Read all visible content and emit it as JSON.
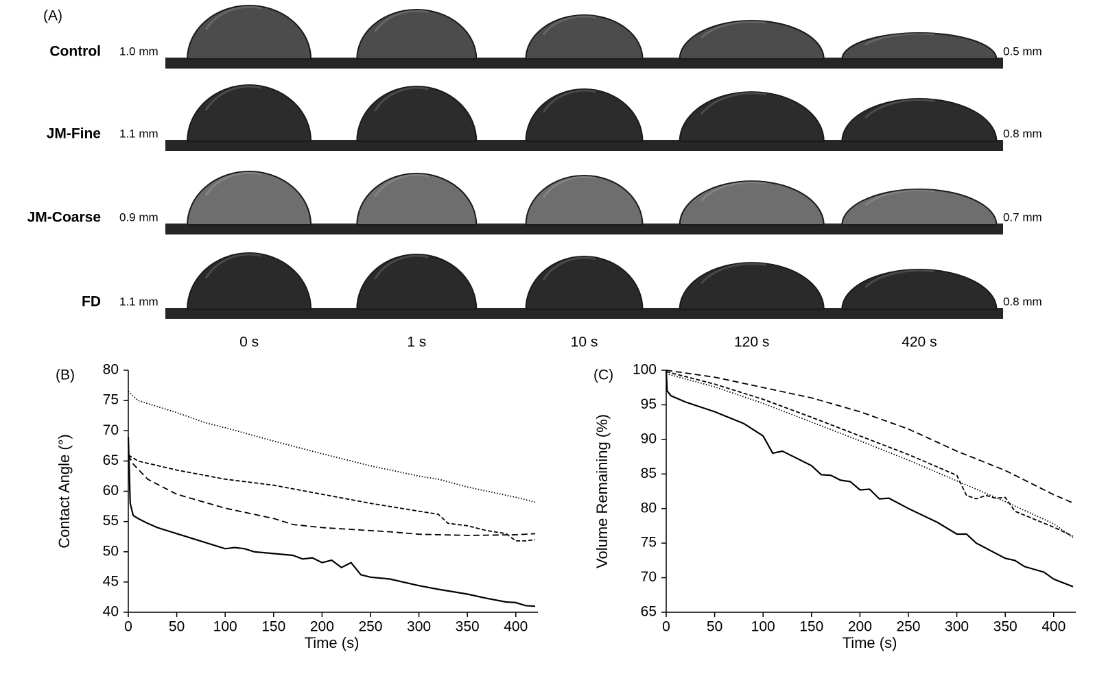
{
  "panel_a": {
    "label": "(A)",
    "rows": [
      {
        "name": "Control",
        "start_diameter": "1.0 mm",
        "end_diameter": "0.5 mm"
      },
      {
        "name": "JM-Fine",
        "start_diameter": "1.1 mm",
        "end_diameter": "0.8 mm"
      },
      {
        "name": "JM-Coarse",
        "start_diameter": "0.9 mm",
        "end_diameter": "0.7 mm"
      },
      {
        "name": "FD",
        "start_diameter": "1.1 mm",
        "end_diameter": "0.8 mm"
      }
    ],
    "times": [
      "0 s",
      "1 s",
      "10 s",
      "120 s",
      "420 s"
    ]
  },
  "chart_data": [
    {
      "type": "line",
      "label": "(B)",
      "xlabel": "Time (s)",
      "ylabel": "Contact Angle (°)",
      "xlim": [
        0,
        420
      ],
      "xticks": [
        0,
        50,
        100,
        150,
        200,
        250,
        300,
        350,
        400
      ],
      "ylim": [
        40,
        80
      ],
      "yticks": [
        40,
        45,
        50,
        55,
        60,
        65,
        70,
        75,
        80
      ],
      "series": [
        {
          "color": "#000000",
          "dash": "solid",
          "x": [
            0,
            2,
            5,
            10,
            20,
            30,
            50,
            70,
            100,
            110,
            120,
            130,
            150,
            170,
            180,
            190,
            200,
            210,
            220,
            230,
            240,
            250,
            270,
            300,
            320,
            350,
            370,
            390,
            400,
            410,
            420
          ],
          "values": [
            69,
            58,
            56,
            55.5,
            54.7,
            54,
            53,
            52,
            50.5,
            50.7,
            50.5,
            50,
            49.7,
            49.4,
            48.8,
            49,
            48.2,
            48.6,
            47.4,
            48.2,
            46.2,
            45.8,
            45.5,
            44.4,
            43.8,
            43,
            42.3,
            41.7,
            41.6,
            41.1,
            41
          ]
        },
        {
          "color": "#000000",
          "dash": "dotted",
          "x": [
            0,
            10,
            50,
            80,
            100,
            150,
            200,
            250,
            300,
            320,
            350,
            400,
            420
          ],
          "values": [
            76.5,
            75,
            73,
            71.3,
            70.5,
            68.3,
            66.2,
            64.2,
            62.5,
            62,
            60.7,
            59,
            58.2
          ]
        },
        {
          "color": "#000000",
          "dash": "dashed",
          "x": [
            0,
            5,
            20,
            50,
            100,
            150,
            170,
            200,
            250,
            270,
            300,
            350,
            400,
            420
          ],
          "values": [
            66,
            64.5,
            62,
            59.5,
            57.2,
            55.5,
            54.5,
            54,
            53.5,
            53.3,
            52.9,
            52.7,
            52.8,
            53
          ]
        },
        {
          "color": "#000000",
          "dash": "short-dashed",
          "x": [
            0,
            10,
            50,
            100,
            150,
            200,
            250,
            300,
            320,
            330,
            350,
            370,
            390,
            400,
            410,
            420
          ],
          "values": [
            66,
            65,
            63.5,
            62,
            61,
            59.5,
            58,
            56.7,
            56.2,
            54.7,
            54.3,
            53.5,
            53,
            51.8,
            51.8,
            52
          ]
        }
      ]
    },
    {
      "type": "line",
      "label": "(C)",
      "xlabel": "Time (s)",
      "ylabel": "Volume Remaining (%)",
      "xlim": [
        0,
        420
      ],
      "xticks": [
        0,
        50,
        100,
        150,
        200,
        250,
        300,
        350,
        400
      ],
      "ylim": [
        65,
        100
      ],
      "yticks": [
        65,
        70,
        75,
        80,
        85,
        90,
        95,
        100
      ],
      "series": [
        {
          "color": "#000000",
          "dash": "solid",
          "x": [
            0,
            1,
            5,
            20,
            50,
            80,
            100,
            110,
            120,
            150,
            160,
            170,
            180,
            190,
            200,
            210,
            220,
            230,
            250,
            280,
            300,
            310,
            320,
            350,
            360,
            370,
            390,
            400,
            420
          ],
          "values": [
            100,
            97,
            96.3,
            95.4,
            94,
            92.3,
            90.5,
            88,
            88.3,
            86.2,
            84.9,
            84.8,
            84.1,
            83.9,
            82.7,
            82.8,
            81.4,
            81.5,
            80,
            78,
            76.3,
            76.3,
            75,
            72.8,
            72.5,
            71.6,
            70.8,
            69.8,
            68.7
          ]
        },
        {
          "color": "#000000",
          "dash": "dashed",
          "x": [
            0,
            50,
            100,
            150,
            200,
            250,
            300,
            350,
            400,
            420
          ],
          "values": [
            100,
            99,
            97.5,
            96,
            94,
            91.5,
            88.3,
            85.5,
            82,
            80.8
          ]
        },
        {
          "color": "#000000",
          "dash": "short-dashed",
          "x": [
            0,
            50,
            100,
            150,
            200,
            250,
            300,
            310,
            320,
            330,
            340,
            350,
            360,
            400,
            420
          ],
          "values": [
            99.8,
            98,
            95.8,
            93.2,
            90.5,
            87.8,
            84.8,
            81.9,
            81.4,
            81.9,
            81.5,
            81.6,
            79.6,
            77.3,
            76
          ]
        },
        {
          "color": "#000000",
          "dash": "dotted",
          "x": [
            0,
            50,
            100,
            150,
            200,
            250,
            300,
            350,
            400,
            420
          ],
          "values": [
            99.5,
            97.6,
            95.2,
            92.5,
            89.8,
            87,
            84,
            81,
            77.8,
            75.8
          ]
        }
      ]
    }
  ]
}
